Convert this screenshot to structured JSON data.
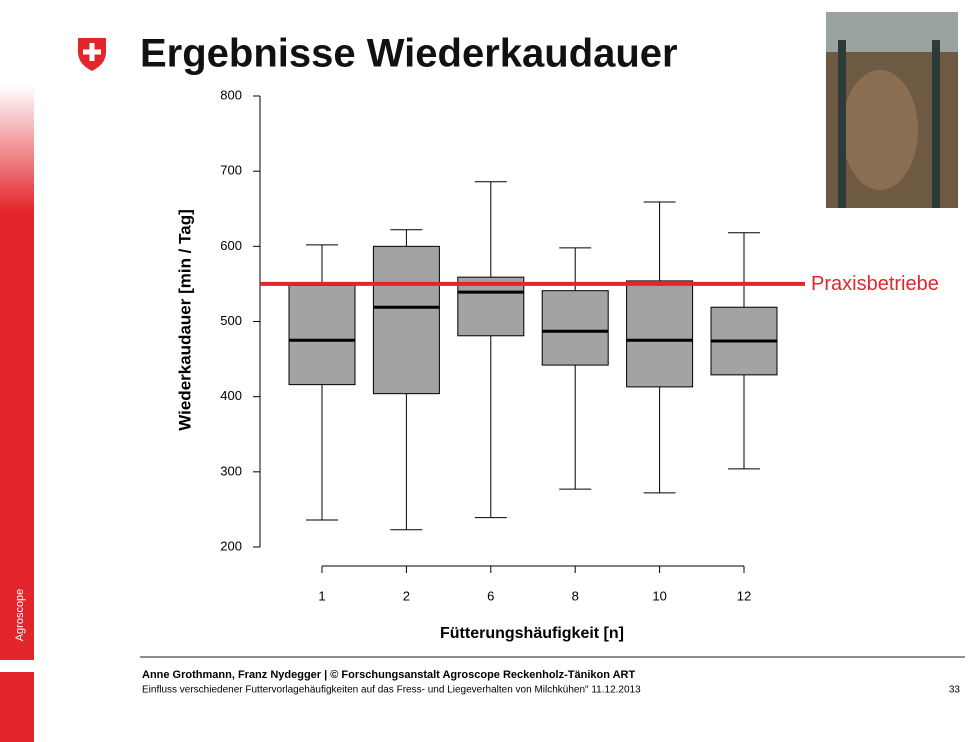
{
  "chart_data": {
    "type": "boxplot",
    "title": "Ergebnisse Wiederkaudauer",
    "y_label": "Wiederkaudauer [min / Tag]",
    "x_label": "Fütterungshäufigkeit [n]",
    "categories": [
      "1",
      "2",
      "6",
      "8",
      "10",
      "12"
    ],
    "boxes": [
      {
        "min": 236,
        "q1": 416,
        "median": 475,
        "q3": 548,
        "max": 602
      },
      {
        "min": 223,
        "q1": 404,
        "median": 519,
        "q3": 600,
        "max": 622
      },
      {
        "min": 239,
        "q1": 481,
        "median": 539,
        "q3": 559,
        "max": 686
      },
      {
        "min": 277,
        "q1": 442,
        "median": 487,
        "q3": 541,
        "max": 598
      },
      {
        "min": 272,
        "q1": 413,
        "median": 475,
        "q3": 554,
        "max": 659
      },
      {
        "min": 304,
        "q1": 429,
        "median": 474,
        "q3": 519,
        "max": 618
      }
    ],
    "color": "#a3a3a3",
    "ylim": [
      200,
      800
    ],
    "yticks": [
      200,
      300,
      400,
      500,
      600,
      700,
      800
    ],
    "reference_line": {
      "value": 550,
      "label": "Praxisbetriebe",
      "color": "#e3262b"
    }
  },
  "footer": {
    "authors": "Anne Grothmann, Franz Nydegger | © Forschungsanstalt Agroscope Reckenholz-Tänikon ART",
    "subtitle": "Einfluss verschiedener Futtervorlagehäufigkeiten auf das Fress- und Liegeverhalten von Milchkühen\" 11.12.2013",
    "page": "33"
  },
  "sidebar": {
    "brand": "Agroscope"
  }
}
